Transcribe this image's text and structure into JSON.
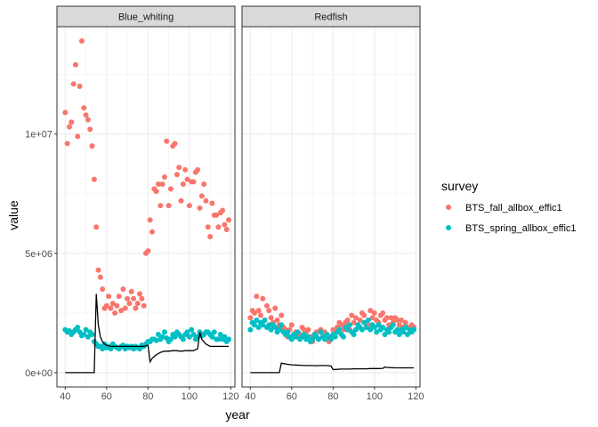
{
  "chart_data": {
    "type": "scatter",
    "xlabel": "year",
    "ylabel": "value",
    "xlim": [
      36,
      122
    ],
    "ylim": [
      -600000,
      14500000
    ],
    "x_ticks": [
      40,
      60,
      80,
      100,
      120
    ],
    "y_ticks": [
      0,
      5000000,
      10000000
    ],
    "y_tick_labels": [
      "0e+00",
      "5e+06",
      "1e+07"
    ],
    "grid": true,
    "legend": {
      "title": "survey",
      "position": "right",
      "entries": [
        {
          "label": "BTS_fall_allbox_effic1",
          "color": "#F8766D"
        },
        {
          "label": "BTS_spring_allbox_effic1",
          "color": "#00BFC4"
        }
      ]
    },
    "panels": [
      {
        "strip": "Blue_whiting",
        "series": [
          {
            "name": "BTS_fall_allbox_effic1",
            "color": "#F8766D",
            "x": [
              40,
              41,
              42,
              43,
              44,
              45,
              46,
              47,
              48,
              49,
              50,
              51,
              52,
              53,
              54,
              55,
              56,
              57,
              58,
              59,
              60,
              61,
              62,
              63,
              64,
              65,
              66,
              67,
              68,
              69,
              70,
              71,
              72,
              73,
              74,
              75,
              76,
              77,
              78,
              79,
              80,
              81,
              82,
              83,
              84,
              85,
              86,
              87,
              88,
              89,
              90,
              91,
              92,
              93,
              94,
              95,
              96,
              97,
              98,
              99,
              100,
              101,
              102,
              103,
              104,
              105,
              106,
              107,
              108,
              109,
              110,
              111,
              112,
              113,
              114,
              115,
              116,
              117,
              118,
              119
            ],
            "y": [
              10900000,
              9600000,
              10300000,
              10500000,
              12100000,
              12900000,
              9900000,
              12000000,
              13900000,
              11100000,
              10800000,
              10600000,
              10200000,
              9500000,
              8100000,
              6100000,
              4300000,
              4000000,
              3500000,
              2700000,
              2800000,
              3200000,
              2700000,
              2900000,
              2500000,
              2800000,
              3200000,
              2600000,
              3500000,
              2700000,
              3100000,
              2900000,
              3400000,
              3100000,
              2700000,
              2900000,
              3300000,
              3100000,
              2800000,
              5000000,
              5100000,
              6400000,
              5900000,
              7700000,
              7600000,
              7900000,
              7000000,
              7900000,
              8200000,
              9700000,
              7000000,
              7700000,
              9500000,
              9600000,
              8300000,
              8600000,
              7200000,
              7900000,
              8500000,
              8100000,
              7000000,
              8000000,
              8000000,
              8400000,
              8500000,
              6900000,
              7400000,
              7900000,
              7200000,
              6100000,
              5700000,
              7100000,
              6600000,
              6600000,
              6100000,
              6700000,
              6800000,
              6200000,
              6000000,
              6400000
            ]
          },
          {
            "name": "BTS_spring_allbox_effic1",
            "color": "#00BFC4",
            "x": [
              40,
              41,
              42,
              43,
              44,
              45,
              46,
              47,
              48,
              49,
              50,
              51,
              52,
              53,
              54,
              55,
              56,
              57,
              58,
              59,
              60,
              61,
              62,
              63,
              64,
              65,
              66,
              67,
              68,
              69,
              70,
              71,
              72,
              73,
              74,
              75,
              76,
              77,
              78,
              79,
              80,
              81,
              82,
              83,
              84,
              85,
              86,
              87,
              88,
              89,
              90,
              91,
              92,
              93,
              94,
              95,
              96,
              97,
              98,
              99,
              100,
              101,
              102,
              103,
              104,
              105,
              106,
              107,
              108,
              109,
              110,
              111,
              112,
              113,
              114,
              115,
              116,
              117,
              118,
              119
            ],
            "y": [
              1800000,
              1700000,
              1750000,
              1600000,
              1700000,
              1800000,
              1900000,
              1700000,
              1550000,
              1600000,
              1800000,
              1500000,
              1700000,
              1600000,
              1300000,
              1200000,
              1100000,
              1100000,
              1000000,
              1200000,
              1050000,
              1100000,
              1000000,
              1200000,
              1100000,
              1050000,
              1000000,
              1100000,
              1150000,
              1000000,
              1100000,
              1050000,
              1100000,
              1000000,
              1100000,
              1050000,
              1000000,
              1150000,
              1100000,
              1200000,
              1300000,
              1300000,
              1400000,
              1400000,
              1350000,
              1600000,
              1400000,
              1500000,
              1700000,
              1450000,
              1300000,
              1400000,
              1600000,
              1500000,
              1700000,
              1600000,
              1500000,
              1400000,
              1600000,
              1700000,
              1500000,
              1800000,
              1600000,
              1400000,
              1500000,
              1700000,
              1550000,
              1600000,
              1700000,
              1700000,
              1600000,
              1500000,
              1700000,
              1400000,
              1400000,
              1600000,
              1400000,
              1500000,
              1300000,
              1400000
            ]
          }
        ],
        "line": {
          "x": [
            40,
            41,
            42,
            43,
            44,
            45,
            46,
            47,
            48,
            49,
            50,
            51,
            52,
            53,
            54,
            55,
            56,
            57,
            58,
            59,
            60,
            62,
            64,
            66,
            68,
            70,
            72,
            74,
            76,
            78,
            80,
            81,
            82,
            84,
            86,
            88,
            90,
            92,
            94,
            96,
            98,
            100,
            102,
            104,
            105,
            106,
            108,
            110,
            112,
            114,
            116,
            118,
            119
          ],
          "y": [
            0,
            0,
            0,
            0,
            0,
            0,
            0,
            0,
            0,
            0,
            0,
            0,
            0,
            0,
            0,
            3300000,
            2000000,
            1500000,
            1300000,
            1200000,
            1150000,
            1100000,
            1100000,
            1100000,
            1100000,
            1100000,
            1100000,
            1100000,
            1100000,
            1100000,
            1150000,
            450000,
            600000,
            750000,
            850000,
            900000,
            900000,
            920000,
            920000,
            900000,
            920000,
            920000,
            920000,
            1000000,
            1700000,
            1400000,
            1200000,
            1100000,
            1100000,
            1100000,
            1100000,
            1100000,
            1100000
          ]
        }
      },
      {
        "strip": "Redfish",
        "series": [
          {
            "name": "BTS_fall_allbox_effic1",
            "color": "#F8766D",
            "x": [
              40,
              41,
              42,
              43,
              44,
              45,
              46,
              47,
              48,
              49,
              50,
              51,
              52,
              53,
              54,
              55,
              56,
              57,
              58,
              59,
              60,
              61,
              62,
              63,
              64,
              65,
              66,
              67,
              68,
              69,
              70,
              71,
              72,
              73,
              74,
              75,
              76,
              77,
              78,
              79,
              80,
              81,
              82,
              83,
              84,
              85,
              86,
              87,
              88,
              89,
              90,
              91,
              92,
              93,
              94,
              95,
              96,
              97,
              98,
              99,
              100,
              101,
              102,
              103,
              104,
              105,
              106,
              107,
              108,
              109,
              110,
              111,
              112,
              113,
              114,
              115,
              116,
              117,
              118,
              119
            ],
            "y": [
              2300000,
              2600000,
              2500000,
              3200000,
              2600000,
              2400000,
              3100000,
              2200000,
              2800000,
              2600000,
              2300000,
              2100000,
              2700000,
              2200000,
              2000000,
              2400000,
              1900000,
              1800000,
              1500000,
              1800000,
              2000000,
              1600000,
              1700000,
              1500000,
              1600000,
              1900000,
              1800000,
              1700000,
              1800000,
              1500000,
              1300000,
              1600000,
              1700000,
              1400000,
              1800000,
              1500000,
              1700000,
              1600000,
              1300000,
              1500000,
              1800000,
              1700000,
              1900000,
              2100000,
              2000000,
              1800000,
              2100000,
              2200000,
              1800000,
              2400000,
              2100000,
              2300000,
              2000000,
              2200000,
              2500000,
              2400000,
              2100000,
              2000000,
              2600000,
              2300000,
              2500000,
              2200000,
              2100000,
              2400000,
              2500000,
              2200000,
              2300000,
              2000000,
              2300000,
              2100000,
              2300000,
              2200000,
              2000000,
              2200000,
              1900000,
              2100000,
              1900000,
              1800000,
              2000000,
              1900000
            ]
          },
          {
            "name": "BTS_spring_allbox_effic1",
            "color": "#00BFC4",
            "x": [
              40,
              41,
              42,
              43,
              44,
              45,
              46,
              47,
              48,
              49,
              50,
              51,
              52,
              53,
              54,
              55,
              56,
              57,
              58,
              59,
              60,
              61,
              62,
              63,
              64,
              65,
              66,
              67,
              68,
              69,
              70,
              71,
              72,
              73,
              74,
              75,
              76,
              77,
              78,
              79,
              80,
              81,
              82,
              83,
              84,
              85,
              86,
              87,
              88,
              89,
              90,
              91,
              92,
              93,
              94,
              95,
              96,
              97,
              98,
              99,
              100,
              101,
              102,
              103,
              104,
              105,
              106,
              107,
              108,
              109,
              110,
              111,
              112,
              113,
              114,
              115,
              116,
              117,
              118,
              119
            ],
            "y": [
              1800000,
              2100000,
              2000000,
              2200000,
              1900000,
              2100000,
              2000000,
              2200000,
              1900000,
              2000000,
              1800000,
              2000000,
              1900000,
              1700000,
              1800000,
              2000000,
              1700000,
              1600000,
              1700000,
              1500000,
              1400000,
              1600000,
              1500000,
              1700000,
              1400000,
              1500000,
              1600000,
              1400000,
              1500000,
              1300000,
              1400000,
              1600000,
              1500000,
              1400000,
              1700000,
              1500000,
              1400000,
              1600000,
              1500000,
              1400000,
              1600000,
              1500000,
              1700000,
              1800000,
              1600000,
              1500000,
              1900000,
              1800000,
              2000000,
              1700000,
              1600000,
              1800000,
              2000000,
              1900000,
              1800000,
              2100000,
              1900000,
              2200000,
              1800000,
              2000000,
              1900000,
              1700000,
              2000000,
              1800000,
              1900000,
              1600000,
              1800000,
              1700000,
              1900000,
              2000000,
              1700000,
              1800000,
              1600000,
              1800000,
              1700000,
              1900000,
              1600000,
              1800000,
              1700000,
              1800000
            ]
          }
        ],
        "line": {
          "x": [
            40,
            41,
            42,
            44,
            46,
            48,
            50,
            52,
            54,
            55,
            56,
            58,
            60,
            62,
            64,
            66,
            68,
            70,
            72,
            74,
            76,
            78,
            79,
            80,
            82,
            84,
            86,
            88,
            90,
            92,
            94,
            96,
            98,
            100,
            102,
            104,
            105,
            106,
            108,
            110,
            112,
            114,
            116,
            118,
            119
          ],
          "y": [
            0,
            0,
            0,
            0,
            0,
            0,
            0,
            0,
            0,
            400000,
            380000,
            350000,
            330000,
            320000,
            310000,
            300000,
            300000,
            300000,
            290000,
            300000,
            300000,
            290000,
            280000,
            130000,
            140000,
            150000,
            150000,
            150000,
            160000,
            160000,
            160000,
            160000,
            170000,
            170000,
            170000,
            180000,
            230000,
            220000,
            210000,
            200000,
            200000,
            200000,
            200000,
            200000,
            200000
          ]
        }
      }
    ]
  }
}
